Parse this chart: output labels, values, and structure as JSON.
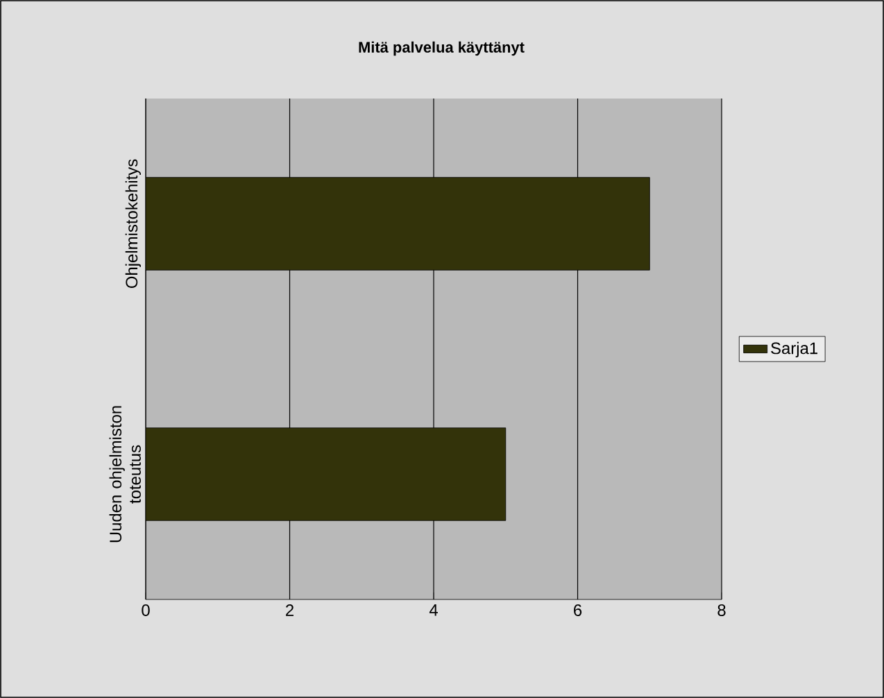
{
  "chart_data": {
    "type": "bar",
    "orientation": "horizontal",
    "title": "Mitä palvelua käyttänyt",
    "categories": [
      "Ohjelmistokehitys",
      "Uuden ohjelmiston toteutus"
    ],
    "series": [
      {
        "name": "Sarja1",
        "color": "#33330a",
        "values": [
          7,
          5
        ]
      }
    ],
    "xlim": [
      0,
      8
    ],
    "xticks": [
      0,
      2,
      4,
      6,
      8
    ],
    "grid": "x",
    "legend": "right"
  }
}
